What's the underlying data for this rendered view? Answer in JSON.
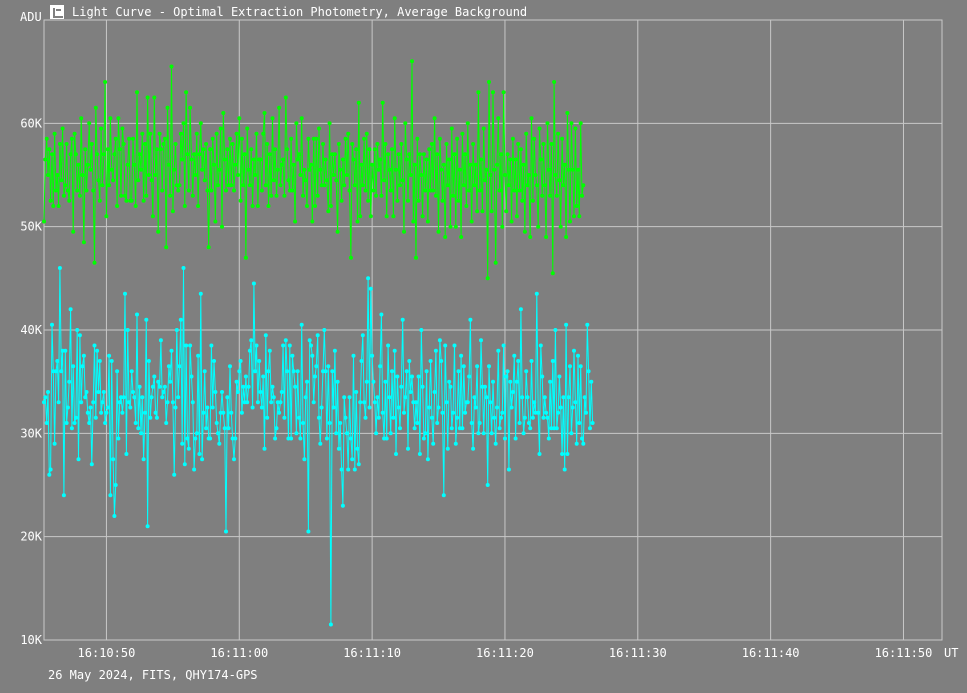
{
  "window": {
    "title": "Light Curve - Optimal Extraction Photometry, Average Background",
    "icon": "chart-icon"
  },
  "footer": {
    "info": "26 May 2024, FITS, QHY174-GPS"
  },
  "colors": {
    "background": "#7f7f7f",
    "grid": "#c8c8c8",
    "series_target": "#00ff00",
    "series_comparison": "#00ffff"
  },
  "chart_data": {
    "type": "line",
    "title": "Light Curve - Optimal Extraction Photometry, Average Background",
    "ylabel": "ADU",
    "xlabel": "UT",
    "ylim": [
      10000,
      70000
    ],
    "xlim_seconds": [
      45.3,
      112.9
    ],
    "x_ticks": [
      "16:10:50",
      "16:11:00",
      "16:11:10",
      "16:11:20",
      "16:11:30",
      "16:11:40",
      "16:11:50"
    ],
    "x_tick_values": [
      50,
      60,
      70,
      80,
      90,
      100,
      110
    ],
    "y_ticks": [
      "10K",
      "20K",
      "30K",
      "40K",
      "50K",
      "60K"
    ],
    "y_tick_values": [
      10000,
      20000,
      30000,
      40000,
      50000,
      60000
    ],
    "grid": true,
    "sample_interval_s": 0.1,
    "series": [
      {
        "color": "#00ff00",
        "values": [
          50500,
          56500,
          58500,
          55000,
          57500,
          52500,
          57000,
          52000,
          59000,
          53500,
          55000,
          52000,
          58000,
          54500,
          59500,
          53000,
          54000,
          58000,
          53500,
          52500,
          57000,
          58500,
          49500,
          59000,
          57000,
          53500,
          56000,
          53000,
          60500,
          55000,
          48500,
          57500,
          53500,
          56000,
          60000,
          55500,
          58000,
          53500,
          46500,
          61500,
          57000,
          54500,
          52500,
          59500,
          54000,
          57000,
          64000,
          51000,
          57500,
          54000,
          60500,
          55500,
          54500,
          57000,
          58500,
          52000,
          60500,
          57500,
          53000,
          59500,
          58000,
          53000,
          52500,
          56000,
          58500,
          52500,
          52500,
          58500,
          56000,
          52000,
          63000,
          54500,
          57000,
          55500,
          59000,
          52500,
          58000,
          53000,
          62500,
          55000,
          59000,
          54500,
          51000,
          62500,
          55000,
          57500,
          49500,
          59000,
          57500,
          53500,
          58000,
          58500,
          48000,
          61500,
          56000,
          53000,
          65500,
          51500,
          55500,
          58000,
          54000,
          53500,
          54000,
          59000,
          56500,
          60000,
          52000,
          63000,
          57000,
          53500,
          61500,
          56500,
          53000,
          57000,
          55000,
          59000,
          52000,
          57000,
          60000,
          55500,
          57500,
          54500,
          58000,
          53500,
          48000,
          57500,
          53500,
          58500,
          56000,
          50500,
          59000,
          54000,
          55500,
          59500,
          50000,
          61000,
          56500,
          53500,
          57500,
          54000,
          58500,
          54000,
          58000,
          53500,
          56000,
          59000,
          55000,
          60500,
          52500,
          58500,
          54000,
          57000,
          47000,
          59500,
          55500,
          54000,
          57500,
          52000,
          56500,
          55000,
          59000,
          52000,
          56500,
          56500,
          53500,
          59000,
          61000,
          54000,
          58000,
          52000,
          57000,
          53000,
          60500,
          54500,
          57500,
          53000,
          55500,
          61500,
          54000,
          56000,
          56500,
          53000,
          62500,
          57500,
          54500,
          53500,
          58500,
          53500,
          56000,
          50500,
          60000,
          56500,
          57000,
          55000,
          60500,
          53000,
          55500,
          54500,
          52000,
          58500,
          55500,
          56000,
          50500,
          58500,
          52000,
          58500,
          53000,
          59500,
          55500,
          54000,
          58000,
          54000,
          56500,
          54500,
          51500,
          60000,
          52000,
          57000,
          55000,
          57000,
          54500,
          49500,
          58000,
          55500,
          52500,
          56500,
          54000,
          58500,
          55000,
          59000,
          53500,
          47000,
          58000,
          56500,
          54000,
          57500,
          50500,
          62000,
          51000,
          56000,
          54000,
          58500,
          53500,
          59000,
          52500,
          57500,
          51000,
          56000,
          53500,
          57500,
          53000,
          58000,
          55500,
          56500,
          53000,
          62000,
          54500,
          58000,
          51000,
          57000,
          55500,
          53500,
          57500,
          51000,
          60500,
          55500,
          52500,
          57000,
          54000,
          58000,
          54500,
          49500,
          60000,
          56500,
          52500,
          57000,
          55000,
          66000,
          50500,
          56000,
          47000,
          58500,
          52500,
          57000,
          55000,
          51000,
          57000,
          53500,
          56500,
          50500,
          57500,
          53500,
          58000,
          53500,
          60500,
          53000,
          57000,
          49500,
          58500,
          55500,
          52500,
          56000,
          49000,
          58000,
          54000,
          56500,
          50000,
          59500,
          53000,
          57000,
          50000,
          58500,
          52500,
          55500,
          49000,
          59000,
          54000,
          57000,
          52000,
          60000,
          53500,
          56000,
          50500,
          58000,
          54000,
          56000,
          51500,
          63000,
          53500,
          56500,
          51500,
          59500,
          54500,
          55500,
          45000,
          64000,
          55000,
          51500,
          63000,
          55500,
          46500,
          56000,
          60500,
          53500,
          57000,
          50000,
          63000,
          55000,
          51500,
          57000,
          54000,
          56500,
          50500,
          58500,
          53500,
          56500,
          51000,
          58000,
          53500,
          57500,
          52500,
          56000,
          49500,
          59000,
          54000,
          55000,
          49000,
          60500,
          52500,
          58500,
          55000,
          54000,
          50000,
          59500,
          56500,
          53000,
          58000,
          54000,
          49000,
          60000,
          55500,
          53000,
          58000,
          45500,
          64000,
          55000,
          53000,
          59000,
          54500,
          50000,
          58500,
          54000,
          56000,
          49000,
          61000,
          55500,
          50500,
          60000,
          55500,
          51000,
          59500,
          52000,
          55500,
          51000,
          60000,
          53000,
          54000
        ]
      },
      {
        "color": "#00ffff",
        "values": [
          33000,
          33500,
          31000,
          34000,
          26000,
          26500,
          40500,
          36000,
          29000,
          36000,
          37000,
          33000,
          46000,
          36000,
          38000,
          24000,
          38000,
          31000,
          32500,
          35000,
          42000,
          30500,
          36500,
          31000,
          31500,
          40000,
          27500,
          39500,
          33000,
          36500,
          37500,
          33500,
          34000,
          32000,
          31000,
          32500,
          27000,
          33000,
          38500,
          31500,
          38000,
          34000,
          37000,
          32000,
          33000,
          34000,
          31000,
          32000,
          32500,
          37500,
          24000,
          37000,
          27500,
          22000,
          25000,
          36000,
          29500,
          33000,
          33500,
          32000,
          33500,
          43500,
          28000,
          40000,
          33000,
          32500,
          36000,
          34000,
          33500,
          31000,
          41500,
          30500,
          34500,
          30000,
          33500,
          27500,
          32000,
          41000,
          21000,
          37000,
          31500,
          33500,
          34500,
          35500,
          32000,
          31500,
          35000,
          34500,
          39000,
          33500,
          34000,
          34500,
          31000,
          33000,
          36500,
          35000,
          38000,
          33000,
          26000,
          32500,
          40000,
          33500,
          36500,
          41000,
          29000,
          46000,
          27000,
          38500,
          29500,
          28500,
          38500,
          35500,
          33000,
          26500,
          29500,
          30000,
          37500,
          28000,
          43500,
          27500,
          32000,
          36000,
          30500,
          32500,
          29500,
          29500,
          38500,
          32500,
          37000,
          34000,
          31000,
          30000,
          29000,
          32000,
          34000,
          32000,
          30500,
          20500,
          33500,
          30500,
          36500,
          32000,
          29500,
          27500,
          29500,
          35000,
          34000,
          36000,
          37000,
          32000,
          34500,
          33000,
          35500,
          33000,
          34500,
          38000,
          39000,
          32500,
          44500,
          36000,
          38500,
          33000,
          37000,
          34000,
          32500,
          35500,
          28500,
          39500,
          31500,
          36000,
          38000,
          33000,
          34500,
          33500,
          29500,
          30500,
          33000,
          32000,
          33000,
          34000,
          38500,
          31500,
          39000,
          36000,
          29500,
          38500,
          29500,
          37500,
          36000,
          34500,
          30000,
          36000,
          31500,
          29500,
          40500,
          31000,
          27500,
          33500,
          35000,
          20500,
          39000,
          38500,
          37500,
          33000,
          35500,
          36500,
          39500,
          31500,
          29000,
          32500,
          36000,
          40000,
          36000,
          29500,
          36500,
          31000,
          11500,
          36000,
          32500,
          38000,
          30000,
          35000,
          28500,
          31000,
          26500,
          23000,
          33500,
          31500,
          30000,
          26500,
          33500,
          29500,
          27500,
          37500,
          26500,
          34000,
          28500,
          27000,
          33000,
          37000,
          39500,
          33000,
          31500,
          35000,
          45000,
          32500,
          44000,
          37500,
          35000,
          33000,
          30000,
          33500,
          31500,
          36500,
          41500,
          32000,
          29500,
          35000,
          29500,
          38500,
          33500,
          30000,
          36000,
          31500,
          38000,
          28000,
          35500,
          32500,
          30500,
          34500,
          41000,
          32000,
          33500,
          36000,
          28500,
          37000,
          34000,
          35500,
          33000,
          30500,
          33000,
          31000,
          35500,
          28000,
          40000,
          34500,
          29500,
          30000,
          36000,
          27500,
          32500,
          37000,
          31500,
          29000,
          34000,
          38000,
          31000,
          32500,
          39000,
          37000,
          32000,
          24000,
          38500,
          33000,
          28500,
          35000,
          34500,
          30500,
          32000,
          38500,
          29000,
          31500,
          36000,
          30500,
          37500,
          30500,
          36500,
          32000,
          33000,
          33000,
          35500,
          41000,
          31000,
          28500,
          33500,
          32500,
          36500,
          30000,
          31000,
          39000,
          34500,
          30000,
          34500,
          33500,
          25000,
          36500,
          33000,
          30000,
          35000,
          31500,
          29000,
          32500,
          38000,
          30500,
          31500,
          32000,
          38500,
          29500,
          35500,
          36000,
          26500,
          35000,
          32500,
          34000,
          37500,
          29500,
          35000,
          37000,
          31000,
          42000,
          33500,
          30000,
          31500,
          36000,
          33500,
          31000,
          30500,
          37000,
          31500,
          33000,
          32000,
          43500,
          32000,
          28000,
          38500,
          35500,
          31500,
          33500,
          32000,
          31500,
          29500,
          35000,
          30500,
          37000,
          30500,
          40000,
          30500,
          32000,
          35500,
          32500,
          28000,
          33500,
          26500,
          40500,
          28000,
          33500,
          36500,
          30000,
          32500,
          38000,
          33000,
          29000,
          37500,
          31000,
          36500,
          29500,
          29000,
          33500,
          32000,
          40500,
          36000,
          30500,
          35000,
          31000
        ]
      }
    ]
  }
}
